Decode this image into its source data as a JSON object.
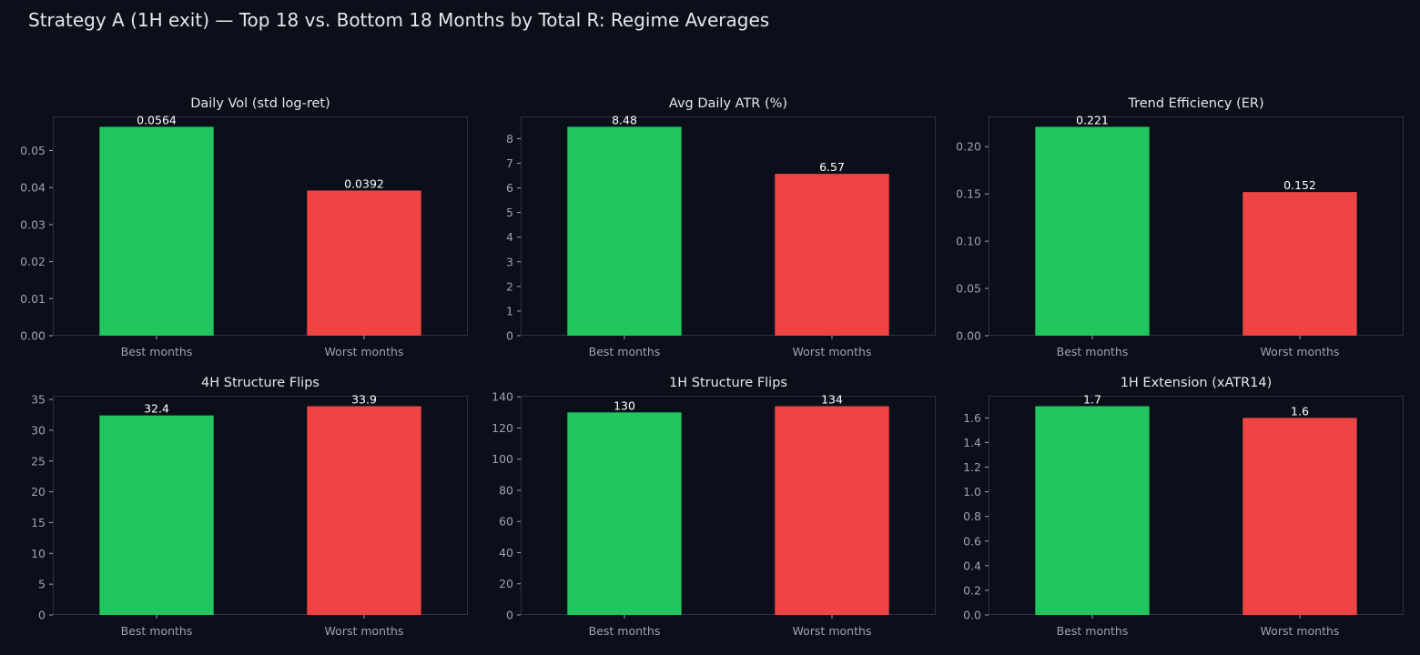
{
  "figure": {
    "title": "Strategy A (1H exit) — Top 18 vs. Bottom 18 Months by Total R: Regime Averages"
  },
  "colors": {
    "background": "#0b0f19",
    "best": "#22c55e",
    "worst": "#ef4444",
    "frame": "#2a3140",
    "title_text": "#e5e7eb",
    "tick_text": "#9ca3af",
    "value_text": "#ffffff"
  },
  "chart_data": [
    {
      "type": "bar",
      "title": "Daily Vol (std log-ret)",
      "categories": [
        "Best months",
        "Worst months"
      ],
      "values": [
        0.0564,
        0.0392
      ],
      "value_labels": [
        "0.0564",
        "0.0392"
      ],
      "yticks": [
        "0.00",
        "0.01",
        "0.02",
        "0.03",
        "0.04",
        "0.05"
      ],
      "ylim": [
        0,
        0.0592
      ],
      "grid": false,
      "legend": "none"
    },
    {
      "type": "bar",
      "title": "Avg Daily ATR (%)",
      "categories": [
        "Best months",
        "Worst months"
      ],
      "values": [
        8.48,
        6.57
      ],
      "value_labels": [
        "8.48",
        "6.57"
      ],
      "yticks": [
        "0",
        "1",
        "2",
        "3",
        "4",
        "5",
        "6",
        "7",
        "8"
      ],
      "ylim": [
        0,
        8.9
      ],
      "grid": false,
      "legend": "none"
    },
    {
      "type": "bar",
      "title": "Trend Efficiency (ER)",
      "categories": [
        "Best months",
        "Worst months"
      ],
      "values": [
        0.221,
        0.152
      ],
      "value_labels": [
        "0.221",
        "0.152"
      ],
      "yticks": [
        "0.00",
        "0.05",
        "0.10",
        "0.15",
        "0.20"
      ],
      "ylim": [
        0,
        0.232
      ],
      "grid": false,
      "legend": "none"
    },
    {
      "type": "bar",
      "title": "4H Structure Flips",
      "categories": [
        "Best months",
        "Worst months"
      ],
      "values": [
        32.4,
        33.9
      ],
      "value_labels": [
        "32.4",
        "33.9"
      ],
      "yticks": [
        "0",
        "5",
        "10",
        "15",
        "20",
        "25",
        "30",
        "35"
      ],
      "ylim": [
        0,
        35.6
      ],
      "grid": false,
      "legend": "none"
    },
    {
      "type": "bar",
      "title": "1H Structure Flips",
      "categories": [
        "Best months",
        "Worst months"
      ],
      "values": [
        130,
        134
      ],
      "value_labels": [
        "130",
        "134"
      ],
      "yticks": [
        "0",
        "20",
        "40",
        "60",
        "80",
        "100",
        "120",
        "140"
      ],
      "ylim": [
        0,
        140.7
      ],
      "grid": false,
      "legend": "none"
    },
    {
      "type": "bar",
      "title": "1H Extension (xATR14)",
      "categories": [
        "Best months",
        "Worst months"
      ],
      "values": [
        1.695,
        1.6
      ],
      "value_labels": [
        "1.7",
        "1.6"
      ],
      "yticks": [
        "0.0",
        "0.2",
        "0.4",
        "0.6",
        "0.8",
        "1.0",
        "1.2",
        "1.4",
        "1.6"
      ],
      "ylim": [
        0,
        1.78
      ],
      "grid": false,
      "legend": "none"
    }
  ]
}
